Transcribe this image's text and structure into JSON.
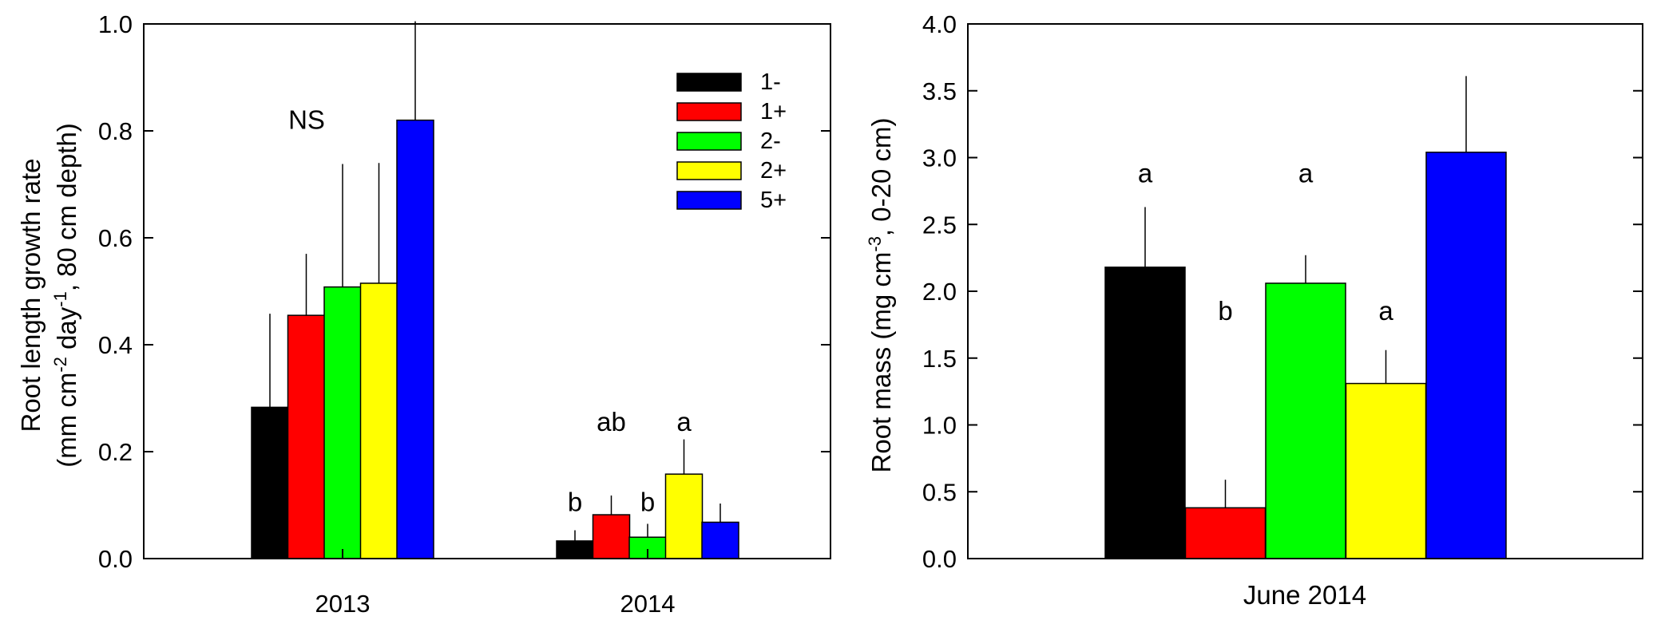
{
  "chart_data": [
    {
      "type": "bar",
      "title": "",
      "xlabel": "",
      "ylabel_line1": "Root length growth rate",
      "ylabel_line2": "(mm cm",
      "ylabel_sup1": "-2",
      "ylabel_mid": " day",
      "ylabel_sup2": "-1",
      "ylabel_end": ", 80 cm depth)",
      "ylim": [
        0,
        1.0
      ],
      "yticks": [
        "0.0",
        "0.2",
        "0.4",
        "0.6",
        "0.8",
        "1.0"
      ],
      "ytick_values": [
        0,
        0.2,
        0.4,
        0.6,
        0.8,
        1.0
      ],
      "categories": [
        "2013",
        "2014"
      ],
      "legend_position": "top-right",
      "series": [
        {
          "name": "1-",
          "color": "#000000",
          "values": [
            0.283,
            0.033
          ],
          "errors": [
            0.175,
            0.02
          ]
        },
        {
          "name": "1+",
          "color": "#ff0000",
          "values": [
            0.455,
            0.082
          ],
          "errors": [
            0.115,
            0.036
          ]
        },
        {
          "name": "2-",
          "color": "#00ff00",
          "values": [
            0.508,
            0.04
          ],
          "errors": [
            0.23,
            0.025
          ]
        },
        {
          "name": "2+",
          "color": "#ffff00",
          "values": [
            0.515,
            0.158
          ],
          "errors": [
            0.225,
            0.065
          ]
        },
        {
          "name": "5+",
          "color": "#0000ff",
          "values": [
            0.82,
            0.068
          ],
          "errors": [
            0.185,
            0.035
          ]
        }
      ],
      "annotations": [
        {
          "text": "NS",
          "category": 0,
          "y": 0.82
        },
        {
          "text": "b",
          "category": 1,
          "series": 0,
          "y": 0.105
        },
        {
          "text": "ab",
          "category": 1,
          "series": 1,
          "y": 0.255
        },
        {
          "text": "b",
          "category": 1,
          "series": 2,
          "y": 0.105
        },
        {
          "text": "a",
          "category": 1,
          "series": 3,
          "y": 0.255
        }
      ]
    },
    {
      "type": "bar",
      "title": "",
      "xlabel": "June 2014",
      "ylabel_pre": "Root mass (mg cm",
      "ylabel_sup": "-3",
      "ylabel_post": ", 0-20 cm)",
      "ylim": [
        0,
        4.0
      ],
      "yticks": [
        "0.0",
        "0.5",
        "1.0",
        "1.5",
        "2.0",
        "2.5",
        "3.0",
        "3.5",
        "4.0"
      ],
      "ytick_values": [
        0,
        0.5,
        1.0,
        1.5,
        2.0,
        2.5,
        3.0,
        3.5,
        4.0
      ],
      "series": [
        {
          "name": "1-",
          "color": "#000000",
          "value": 2.18,
          "error": 0.45,
          "letter": "a",
          "letter_y": 2.88
        },
        {
          "name": "1+",
          "color": "#ff0000",
          "value": 0.38,
          "error": 0.21,
          "letter": "b",
          "letter_y": 1.85
        },
        {
          "name": "2-",
          "color": "#00ff00",
          "value": 2.06,
          "error": 0.21,
          "letter": "a",
          "letter_y": 2.88
        },
        {
          "name": "2+",
          "color": "#ffff00",
          "value": 1.31,
          "error": 0.25,
          "letter": "a",
          "letter_y": 1.85
        },
        {
          "name": "5+",
          "color": "#0000ff",
          "value": 3.04,
          "error": 0.57,
          "letter": "",
          "letter_y": 0
        }
      ]
    }
  ]
}
